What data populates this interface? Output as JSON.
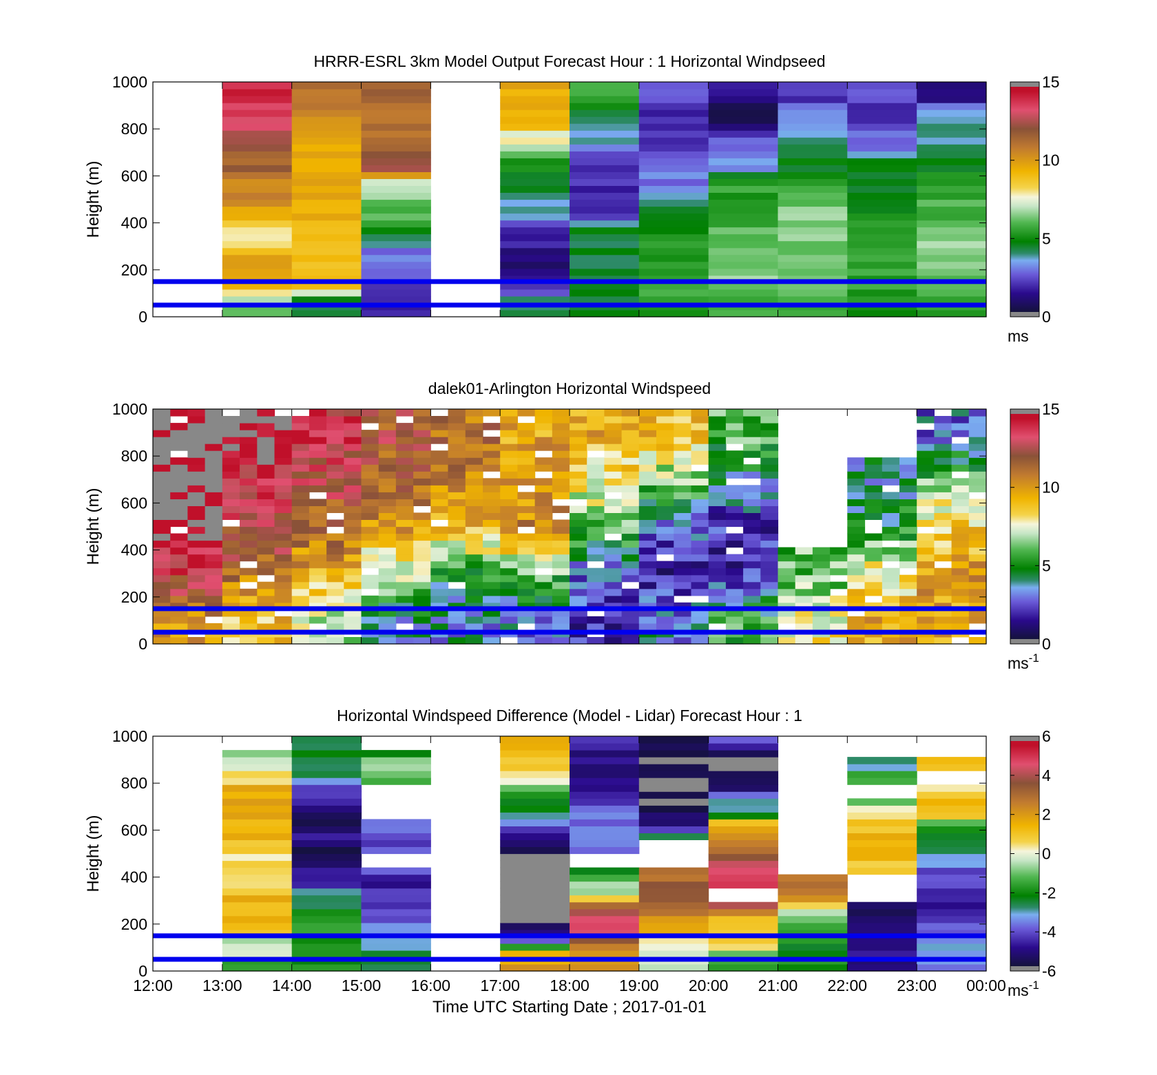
{
  "colors": {
    "guide_line": "#0000ee",
    "no_data": "#ffffff",
    "frame": "#000000"
  },
  "chart_data": [
    {
      "type": "heatmap",
      "title": "HRRR-ESRL 3km Model Output   Forecast Hour : 1 Horizontal Windpseed",
      "ylabel": "Height (m)",
      "xlabel": "",
      "xlim": [
        "12:00",
        "00:00"
      ],
      "ylim": [
        0,
        1000
      ],
      "yticks": [
        "0",
        "200",
        "400",
        "600",
        "800",
        "1000"
      ],
      "xticks": [
        "12:00",
        "13:00",
        "14:00",
        "15:00",
        "16:00",
        "17:00",
        "18:00",
        "19:00",
        "20:00",
        "21:00",
        "22:00",
        "23:00",
        "00:00"
      ],
      "show_xtick_labels": false,
      "colorbar": {
        "min": 0,
        "max": 15,
        "ticks": [
          "0",
          "5",
          "10",
          "15"
        ],
        "unit": "ms",
        "unit_sup": "",
        "palette": "speed"
      },
      "reference_heights_m": [
        50,
        150
      ],
      "column_width_hours": 1,
      "profile_levels_m": [
        25,
        75,
        125,
        175,
        225,
        275,
        325,
        375,
        425,
        475,
        525,
        575,
        625,
        675,
        725,
        775,
        825,
        875,
        925,
        975
      ],
      "columns": [
        {
          "hour": "13:00",
          "values": [
            6,
            7,
            9,
            9.5,
            9.5,
            9.5,
            8,
            8,
            9,
            10,
            10.5,
            10.5,
            11.5,
            11.5,
            12,
            12,
            13.5,
            13.5,
            14,
            14
          ]
        },
        {
          "hour": "14:00",
          "values": [
            4.5,
            4.5,
            9.5,
            9.5,
            9,
            9,
            9,
            9,
            9.5,
            9.5,
            9.5,
            9.5,
            9.5,
            9.5,
            9.5,
            9.5,
            10.5,
            10.5,
            11,
            11
          ]
        },
        {
          "hour": "15:00",
          "values": [
            2,
            2,
            2.5,
            2.5,
            3,
            3,
            4.5,
            4.5,
            6,
            6,
            7,
            7,
            12,
            12,
            11,
            11,
            11,
            11,
            11.5,
            11.5
          ]
        },
        {
          "hour": "17:00",
          "values": [
            4,
            4,
            2,
            2,
            1,
            1,
            2,
            2,
            3.5,
            3.5,
            4.5,
            4.5,
            5,
            5,
            7.5,
            7.5,
            9.5,
            9.5,
            9.5,
            9.5
          ]
        },
        {
          "hour": "18:00",
          "values": [
            4.5,
            4.5,
            4.5,
            4.5,
            4.5,
            4.5,
            4.5,
            4.5,
            2,
            2,
            2,
            2,
            2,
            2,
            3.5,
            3.5,
            4.5,
            4.5,
            5.5,
            5.5
          ]
        },
        {
          "hour": "19:00",
          "values": [
            5.5,
            5.5,
            5.5,
            5.5,
            5.5,
            5.5,
            5,
            5,
            4.5,
            4.5,
            3,
            3,
            3,
            3,
            2,
            2,
            2,
            2,
            3,
            3
          ]
        },
        {
          "hour": "20:00",
          "values": [
            6,
            6,
            6.5,
            6.5,
            6.5,
            6.5,
            6,
            6,
            5,
            5,
            5.5,
            5.5,
            3.5,
            3.5,
            2.5,
            2.5,
            0.2,
            0.2,
            1.5,
            1.5
          ]
        },
        {
          "hour": "21:00",
          "values": [
            5.5,
            5.5,
            6.5,
            6.5,
            6.5,
            6.5,
            6.5,
            6.5,
            6.5,
            6.5,
            5.5,
            5.5,
            4.5,
            4.5,
            4,
            4,
            3,
            3,
            2,
            2
          ]
        },
        {
          "hour": "22:00",
          "values": [
            5,
            5,
            5.5,
            5.5,
            5.5,
            5.5,
            5.5,
            5.5,
            5,
            5,
            4.5,
            4.5,
            4.5,
            4.5,
            3,
            3,
            2,
            2,
            2.5,
            2.5
          ]
        },
        {
          "hour": "23:00",
          "values": [
            5.5,
            5.5,
            6,
            6,
            6.5,
            6.5,
            6.5,
            6.5,
            6,
            6,
            5.5,
            5.5,
            4.5,
            4.5,
            4,
            4,
            3.5,
            3.5,
            1.5,
            1.5
          ]
        }
      ]
    },
    {
      "type": "heatmap",
      "title": "dalek01-Arlington  Horizontal Windspeed",
      "ylabel": "Height (m)",
      "xlabel": "",
      "xlim": [
        "12:00",
        "00:00"
      ],
      "ylim": [
        0,
        1000
      ],
      "yticks": [
        "0",
        "200",
        "400",
        "600",
        "800",
        "1000"
      ],
      "xticks": [
        "12:00",
        "13:00",
        "14:00",
        "15:00",
        "16:00",
        "17:00",
        "18:00",
        "19:00",
        "20:00",
        "21:00",
        "22:00",
        "23:00",
        "00:00"
      ],
      "show_xtick_labels": false,
      "colorbar": {
        "min": 0,
        "max": 15,
        "ticks": [
          "0",
          "5",
          "10",
          "15"
        ],
        "unit": "ms",
        "unit_sup": "-1",
        "palette": "speed"
      },
      "reference_heights_m": [
        50,
        150
      ],
      "column_width_hours": 0.25,
      "profile_levels_m": [
        100,
        300,
        500,
        700,
        900
      ],
      "notes": "",
      "columns": [
        {
          "hour": "12:00",
          "values": [
            10,
            13,
            15.5,
            15.5,
            15.5
          ]
        },
        {
          "hour": "13:00",
          "values": [
            9,
            11,
            12.5,
            13.5,
            15
          ]
        },
        {
          "hour": "14:00",
          "values": [
            7,
            9.5,
            11.5,
            12.5,
            13.5
          ]
        },
        {
          "hour": "15:00",
          "values": [
            4,
            7,
            10,
            11.5,
            12
          ]
        },
        {
          "hour": "16:00",
          "values": [
            3.5,
            5,
            9.5,
            10.5,
            11
          ]
        },
        {
          "hour": "17:00",
          "values": [
            3,
            6,
            10.5,
            10,
            9.5
          ]
        },
        {
          "hour": "18:00",
          "values": [
            2,
            3,
            6,
            8,
            9.5
          ]
        },
        {
          "hour": "19:00",
          "values": [
            3.5,
            1.5,
            3,
            6.5,
            9
          ]
        },
        {
          "hour": "20:00",
          "values": [
            5.5,
            2,
            2,
            4,
            6
          ]
        },
        {
          "hour": "21:00",
          "values": [
            8,
            6,
            null,
            null,
            null
          ]
        },
        {
          "hour": "22:00",
          "values": [
            9.5,
            8,
            5,
            4,
            null
          ]
        },
        {
          "hour": "23:00",
          "values": [
            9.5,
            10,
            8.5,
            6,
            3
          ]
        }
      ]
    },
    {
      "type": "heatmap",
      "title": "Horizontal Windspeed Difference (Model - Lidar) Forecast Hour : 1",
      "ylabel": "Height (m)",
      "xlabel": "Time UTC  Starting Date ; 2017-01-01",
      "xlim": [
        "12:00",
        "00:00"
      ],
      "ylim": [
        0,
        1000
      ],
      "yticks": [
        "0",
        "200",
        "400",
        "600",
        "800",
        "1000"
      ],
      "xticks": [
        "12:00",
        "13:00",
        "14:00",
        "15:00",
        "16:00",
        "17:00",
        "18:00",
        "19:00",
        "20:00",
        "21:00",
        "22:00",
        "23:00",
        "00:00"
      ],
      "show_xtick_labels": true,
      "colorbar": {
        "min": -6,
        "max": 6,
        "ticks": [
          "-6",
          "-4",
          "-2",
          "0",
          "2",
          "4",
          "6"
        ],
        "unit": "ms",
        "unit_sup": "-1",
        "palette": "diff"
      },
      "reference_heights_m": [
        50,
        150
      ],
      "column_width_hours": 1,
      "profile_levels_m": [
        25,
        75,
        125,
        175,
        225,
        275,
        325,
        375,
        425,
        475,
        525,
        575,
        625,
        675,
        725,
        775,
        825,
        875,
        925,
        975
      ],
      "columns": [
        {
          "hour": "13:00",
          "values": [
            -2,
            -0.5,
            -0.5,
            1.5,
            1.5,
            1.5,
            1.5,
            0,
            0.5,
            0.5,
            1,
            1.5,
            1.5,
            2,
            1.5,
            1.5,
            0.5,
            -0.5,
            -0.5,
            null
          ]
        },
        {
          "hour": "14:00",
          "values": [
            -2,
            -2,
            -2,
            -1.5,
            -1.5,
            -2.5,
            -2.5,
            -4.5,
            -5,
            -6,
            -6,
            -4.5,
            -6,
            -5,
            -4.5,
            -4,
            -3,
            -2.5,
            -2.5,
            -2.5
          ]
        },
        {
          "hour": "15:00",
          "values": [
            -2.5,
            -2.5,
            -3,
            -3.5,
            -4,
            -4,
            -4.5,
            -4.5,
            -4,
            null,
            -4,
            -4,
            -3.5,
            null,
            null,
            null,
            -1,
            -0.5,
            -2,
            null
          ]
        },
        {
          "hour": "17:00",
          "values": [
            2,
            1,
            -4,
            -5,
            -7,
            -7,
            -7,
            -7,
            -7,
            -6,
            -5.5,
            -5,
            -4,
            -2.5,
            -2,
            -1.5,
            0.5,
            1,
            1.5,
            2
          ]
        },
        {
          "hour": "18:00",
          "values": [
            2.5,
            2,
            3,
            4.5,
            4.5,
            3,
            -0.5,
            -0.5,
            -2.5,
            null,
            -3.5,
            -3.5,
            -3.5,
            -3.5,
            -4.5,
            -4.5,
            -5,
            -5,
            -5,
            -4
          ]
        },
        {
          "hour": "19:00",
          "values": [
            -0.5,
            -0.5,
            0,
            2,
            2,
            3,
            3.5,
            3.5,
            2.5,
            null,
            null,
            -3,
            -5,
            -5.5,
            -6,
            -6,
            -6,
            -6,
            -6,
            -6
          ]
        },
        {
          "hour": "20:00",
          "values": [
            -1.5,
            -1,
            1,
            1,
            1,
            4,
            null,
            4.5,
            4.5,
            4,
            2.5,
            2.5,
            1.5,
            -3,
            -3,
            -5,
            -6,
            -6,
            -6,
            -4
          ]
        },
        {
          "hour": "21:00",
          "values": [
            -2,
            -2,
            -2,
            -1.5,
            -1,
            0.5,
            3,
            3,
            null,
            null,
            null,
            null,
            null,
            null,
            null,
            null,
            null,
            null,
            null,
            null
          ]
        },
        {
          "hour": "22:00",
          "values": [
            -5,
            -5,
            -5,
            -5,
            -5.5,
            -5,
            null,
            null,
            0.5,
            1,
            1.5,
            1.5,
            1,
            0.5,
            -1,
            null,
            -1.5,
            -3,
            null,
            null
          ]
        },
        {
          "hour": "23:00",
          "values": [
            -4,
            -3,
            -3.5,
            -4,
            -4,
            -4.5,
            -4.5,
            -4,
            -4,
            -3,
            -2,
            -2.5,
            -1.5,
            1.5,
            1,
            0,
            null,
            1.5,
            null,
            null
          ]
        }
      ]
    }
  ]
}
